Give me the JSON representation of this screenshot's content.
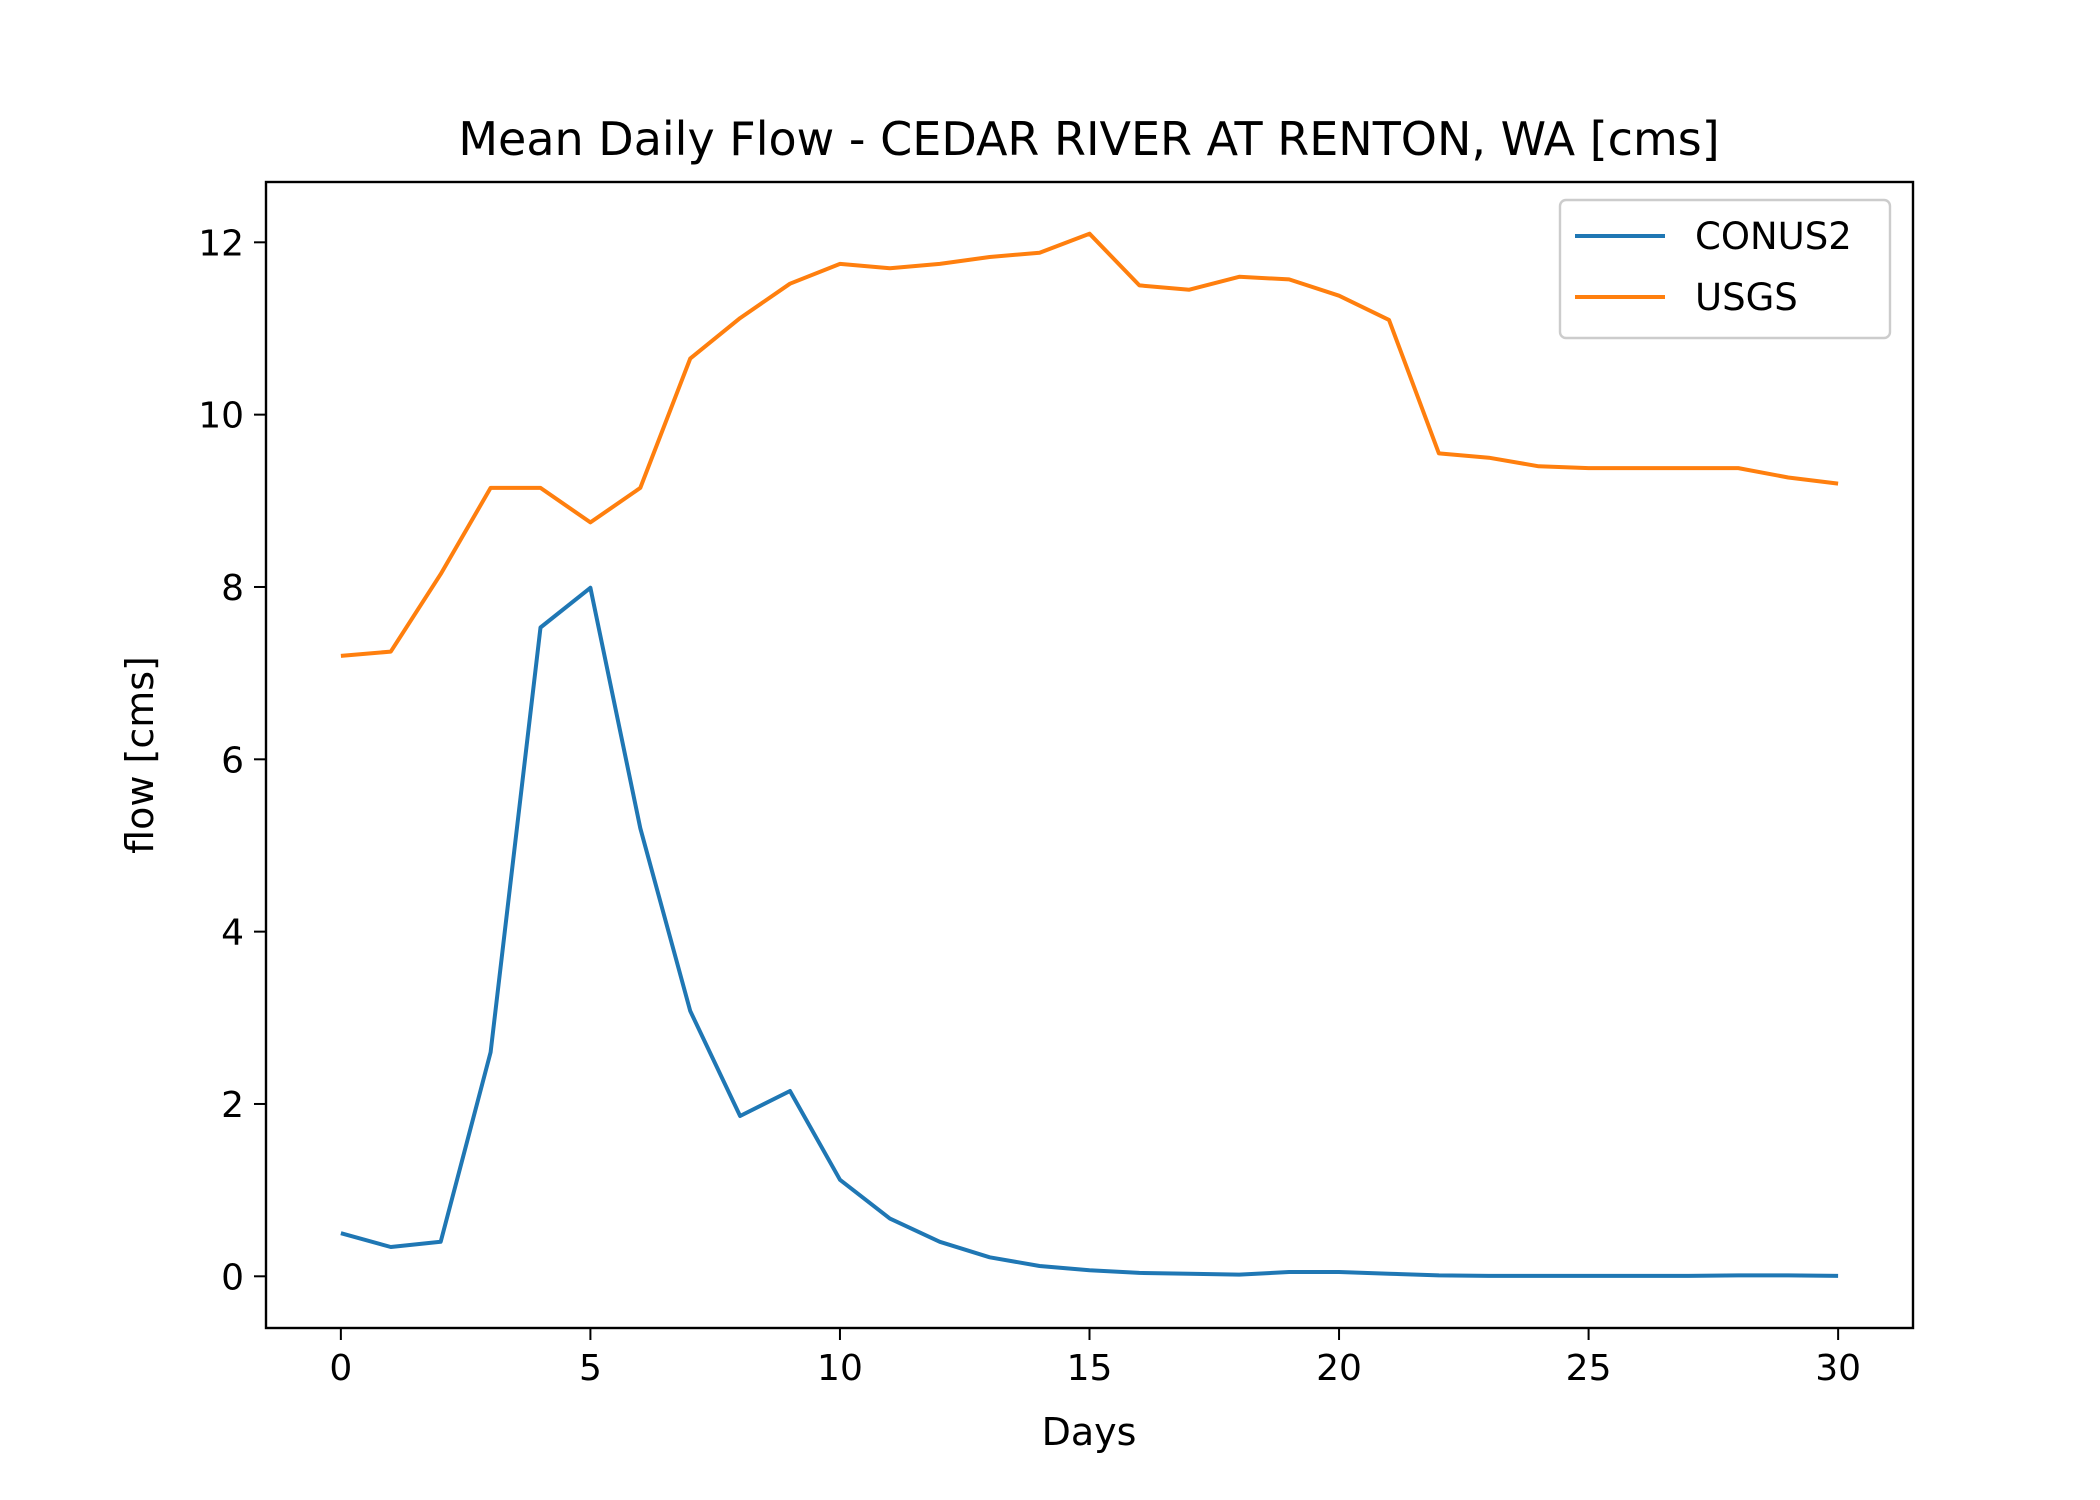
{
  "chart_data": {
    "type": "line",
    "title": "Mean Daily Flow - CEDAR RIVER AT RENTON, WA [cms]",
    "xlabel": "Days",
    "ylabel": "flow [cms]",
    "xlim": [
      -1.5,
      31.5
    ],
    "ylim": [
      -0.6,
      12.7
    ],
    "xticks": [
      0,
      5,
      10,
      15,
      20,
      25,
      30
    ],
    "yticks": [
      0,
      2,
      4,
      6,
      8,
      10,
      12
    ],
    "grid": false,
    "legend_position": "upper right",
    "x": [
      0,
      1,
      2,
      3,
      4,
      5,
      6,
      7,
      8,
      9,
      10,
      11,
      12,
      13,
      14,
      15,
      16,
      17,
      18,
      19,
      20,
      21,
      22,
      23,
      24,
      25,
      26,
      27,
      28,
      29,
      30
    ],
    "series": [
      {
        "name": "CONUS2",
        "color": "#1f77b4",
        "values": [
          0.5,
          0.34,
          0.4,
          2.6,
          7.53,
          7.99,
          5.2,
          3.08,
          1.86,
          2.15,
          1.12,
          0.67,
          0.4,
          0.22,
          0.12,
          0.07,
          0.04,
          0.03,
          0.02,
          0.05,
          0.05,
          0.03,
          0.01,
          0.005,
          0.005,
          0.005,
          0.005,
          0.005,
          0.01,
          0.01,
          0.005
        ]
      },
      {
        "name": "USGS",
        "color": "#ff7f0e",
        "values": [
          7.2,
          7.25,
          8.15,
          9.15,
          9.15,
          8.75,
          9.15,
          10.65,
          11.12,
          11.52,
          11.75,
          11.7,
          11.75,
          11.83,
          11.88,
          12.1,
          11.5,
          11.45,
          11.6,
          11.57,
          11.38,
          11.1,
          9.55,
          9.5,
          9.4,
          9.38,
          9.38,
          9.38,
          9.38,
          9.27,
          9.2
        ]
      }
    ]
  }
}
